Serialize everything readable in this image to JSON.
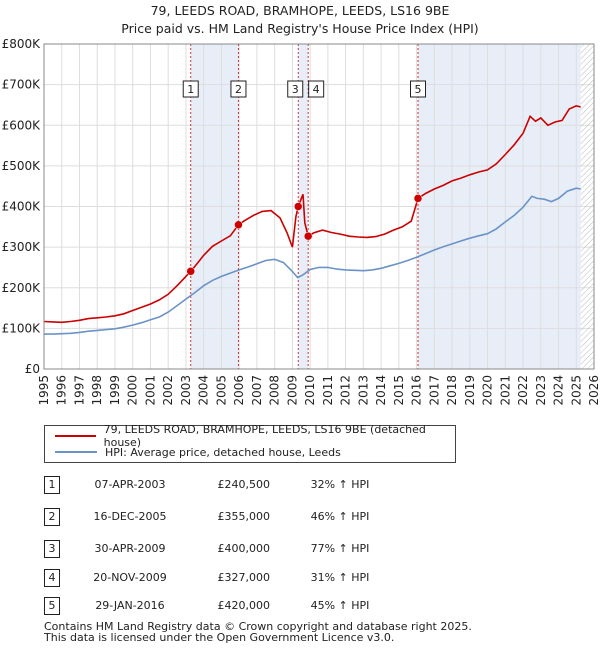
{
  "title_line1": "79, LEEDS ROAD, BRAMHOPE, LEEDS, LS16 9BE",
  "title_line2": "Price paid vs. HM Land Registry's House Price Index (HPI)",
  "chart_data": {
    "type": "line",
    "xlim": [
      1995,
      2026
    ],
    "ylim": [
      0,
      800000
    ],
    "y_ticks": [
      {
        "value": 0,
        "label": "£0"
      },
      {
        "value": 100000,
        "label": "£100K"
      },
      {
        "value": 200000,
        "label": "£200K"
      },
      {
        "value": 300000,
        "label": "£300K"
      },
      {
        "value": 400000,
        "label": "£400K"
      },
      {
        "value": 500000,
        "label": "£500K"
      },
      {
        "value": 600000,
        "label": "£600K"
      },
      {
        "value": 700000,
        "label": "£700K"
      },
      {
        "value": 800000,
        "label": "£800K"
      }
    ],
    "x_ticks": [
      "1995",
      "1996",
      "1997",
      "1998",
      "1999",
      "2000",
      "2001",
      "2002",
      "2003",
      "2004",
      "2005",
      "2006",
      "2007",
      "2008",
      "2009",
      "2010",
      "2011",
      "2012",
      "2013",
      "2014",
      "2015",
      "2016",
      "2017",
      "2018",
      "2019",
      "2020",
      "2021",
      "2022",
      "2023",
      "2024",
      "2025",
      "2026"
    ],
    "future_start": 2025.25,
    "shaded_periods": [
      [
        2003.27,
        2005.96
      ],
      [
        2009.33,
        2009.89
      ],
      [
        2016.08,
        2025.25
      ]
    ],
    "series": [
      {
        "name": "79, LEEDS ROAD, BRAMHOPE, LEEDS, LS16 9BE (detached house)",
        "color": "#cc0000",
        "points": [
          [
            1995.0,
            117000
          ],
          [
            1995.5,
            116000
          ],
          [
            1996.0,
            115000
          ],
          [
            1996.5,
            117000
          ],
          [
            1997.0,
            120000
          ],
          [
            1997.5,
            124000
          ],
          [
            1998.0,
            126000
          ],
          [
            1998.5,
            128000
          ],
          [
            1999.0,
            131000
          ],
          [
            1999.5,
            136000
          ],
          [
            2000.0,
            144000
          ],
          [
            2000.5,
            152000
          ],
          [
            2001.0,
            160000
          ],
          [
            2001.5,
            170000
          ],
          [
            2002.0,
            184000
          ],
          [
            2002.5,
            205000
          ],
          [
            2003.0,
            228000
          ],
          [
            2003.27,
            240500
          ],
          [
            2003.6,
            258000
          ],
          [
            2004.0,
            280000
          ],
          [
            2004.5,
            302000
          ],
          [
            2005.0,
            315000
          ],
          [
            2005.5,
            328000
          ],
          [
            2005.96,
            355000
          ],
          [
            2006.3,
            365000
          ],
          [
            2006.8,
            378000
          ],
          [
            2007.3,
            388000
          ],
          [
            2007.8,
            390000
          ],
          [
            2008.3,
            372000
          ],
          [
            2008.7,
            335000
          ],
          [
            2009.0,
            300000
          ],
          [
            2009.2,
            375000
          ],
          [
            2009.33,
            400000
          ],
          [
            2009.6,
            430000
          ],
          [
            2009.7,
            360000
          ],
          [
            2009.89,
            327000
          ],
          [
            2010.2,
            335000
          ],
          [
            2010.7,
            342000
          ],
          [
            2011.2,
            336000
          ],
          [
            2011.7,
            332000
          ],
          [
            2012.2,
            327000
          ],
          [
            2012.7,
            325000
          ],
          [
            2013.2,
            324000
          ],
          [
            2013.7,
            326000
          ],
          [
            2014.2,
            332000
          ],
          [
            2014.7,
            342000
          ],
          [
            2015.2,
            350000
          ],
          [
            2015.7,
            364000
          ],
          [
            2016.08,
            420000
          ],
          [
            2016.5,
            432000
          ],
          [
            2017.0,
            443000
          ],
          [
            2017.5,
            452000
          ],
          [
            2018.0,
            463000
          ],
          [
            2018.5,
            470000
          ],
          [
            2019.0,
            478000
          ],
          [
            2019.5,
            485000
          ],
          [
            2020.0,
            490000
          ],
          [
            2020.5,
            505000
          ],
          [
            2021.0,
            528000
          ],
          [
            2021.5,
            552000
          ],
          [
            2022.0,
            580000
          ],
          [
            2022.4,
            622000
          ],
          [
            2022.7,
            610000
          ],
          [
            2023.0,
            618000
          ],
          [
            2023.4,
            600000
          ],
          [
            2023.8,
            608000
          ],
          [
            2024.2,
            612000
          ],
          [
            2024.6,
            640000
          ],
          [
            2025.0,
            648000
          ],
          [
            2025.25,
            645000
          ]
        ]
      },
      {
        "name": "HPI: Average price, detached house, Leeds",
        "color": "#6b93c8",
        "points": [
          [
            1995.0,
            86000
          ],
          [
            1995.5,
            86000
          ],
          [
            1996.0,
            87000
          ],
          [
            1996.5,
            88000
          ],
          [
            1997.0,
            90000
          ],
          [
            1997.5,
            93000
          ],
          [
            1998.0,
            95000
          ],
          [
            1998.5,
            97000
          ],
          [
            1999.0,
            99000
          ],
          [
            1999.5,
            103000
          ],
          [
            2000.0,
            108000
          ],
          [
            2000.5,
            114000
          ],
          [
            2001.0,
            121000
          ],
          [
            2001.5,
            128000
          ],
          [
            2002.0,
            140000
          ],
          [
            2002.5,
            156000
          ],
          [
            2003.0,
            172000
          ],
          [
            2003.5,
            188000
          ],
          [
            2004.0,
            205000
          ],
          [
            2004.5,
            218000
          ],
          [
            2005.0,
            228000
          ],
          [
            2005.5,
            236000
          ],
          [
            2006.0,
            244000
          ],
          [
            2006.5,
            251000
          ],
          [
            2007.0,
            259000
          ],
          [
            2007.5,
            267000
          ],
          [
            2008.0,
            270000
          ],
          [
            2008.5,
            262000
          ],
          [
            2009.0,
            240000
          ],
          [
            2009.3,
            225000
          ],
          [
            2009.6,
            232000
          ],
          [
            2010.0,
            245000
          ],
          [
            2010.5,
            250000
          ],
          [
            2011.0,
            250000
          ],
          [
            2011.5,
            246000
          ],
          [
            2012.0,
            244000
          ],
          [
            2012.5,
            243000
          ],
          [
            2013.0,
            242000
          ],
          [
            2013.5,
            244000
          ],
          [
            2014.0,
            248000
          ],
          [
            2014.5,
            254000
          ],
          [
            2015.0,
            260000
          ],
          [
            2015.5,
            267000
          ],
          [
            2016.0,
            275000
          ],
          [
            2016.5,
            284000
          ],
          [
            2017.0,
            293000
          ],
          [
            2017.5,
            301000
          ],
          [
            2018.0,
            308000
          ],
          [
            2018.5,
            315000
          ],
          [
            2019.0,
            322000
          ],
          [
            2019.5,
            328000
          ],
          [
            2020.0,
            333000
          ],
          [
            2020.5,
            345000
          ],
          [
            2021.0,
            362000
          ],
          [
            2021.5,
            378000
          ],
          [
            2022.0,
            398000
          ],
          [
            2022.5,
            425000
          ],
          [
            2022.8,
            420000
          ],
          [
            2023.2,
            418000
          ],
          [
            2023.6,
            412000
          ],
          [
            2024.0,
            420000
          ],
          [
            2024.5,
            438000
          ],
          [
            2025.0,
            445000
          ],
          [
            2025.25,
            443000
          ]
        ]
      }
    ],
    "sales": [
      {
        "id": "1",
        "x": 2003.27,
        "price": 240500
      },
      {
        "id": "2",
        "x": 2005.96,
        "price": 355000
      },
      {
        "id": "3",
        "x": 2009.33,
        "price": 400000
      },
      {
        "id": "4",
        "x": 2009.89,
        "price": 327000
      },
      {
        "id": "5",
        "x": 2016.08,
        "price": 420000
      }
    ]
  },
  "legend": {
    "property_label": "79, LEEDS ROAD, BRAMHOPE, LEEDS, LS16 9BE (detached house)",
    "hpi_label": "HPI: Average price, detached house, Leeds",
    "property_color": "#cc0000",
    "hpi_color": "#6b93c8"
  },
  "sales_table": [
    {
      "num": "1",
      "date": "07-APR-2003",
      "price": "£240,500",
      "hpi": "32% ↑ HPI"
    },
    {
      "num": "2",
      "date": "16-DEC-2005",
      "price": "£355,000",
      "hpi": "46% ↑ HPI"
    },
    {
      "num": "3",
      "date": "30-APR-2009",
      "price": "£400,000",
      "hpi": "77% ↑ HPI"
    },
    {
      "num": "4",
      "date": "20-NOV-2009",
      "price": "£327,000",
      "hpi": "31% ↑ HPI"
    },
    {
      "num": "5",
      "date": "29-JAN-2016",
      "price": "£420,000",
      "hpi": "45% ↑ HPI"
    }
  ],
  "footer_line1": "Contains HM Land Registry data © Crown copyright and database right 2025.",
  "footer_line2": "This data is licensed under the Open Government Licence v3.0."
}
